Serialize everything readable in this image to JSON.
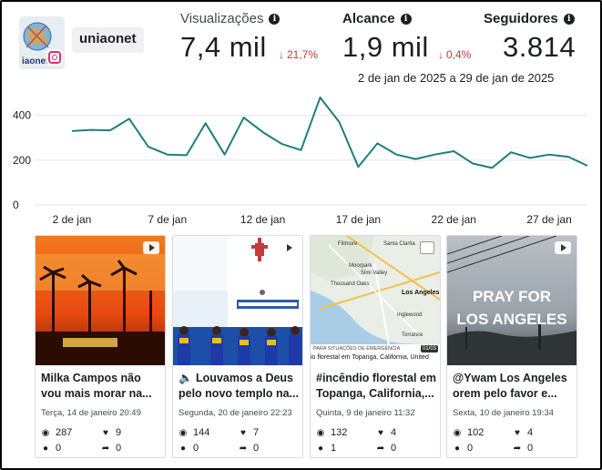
{
  "account": {
    "name": "uniaonet",
    "avatar_text": "iaonet"
  },
  "metrics": [
    {
      "label": "Visualizações",
      "value": "7,4 mil",
      "change": "21,7%",
      "direction": "down"
    },
    {
      "label": "Alcance",
      "value": "1,9 mil",
      "change": "0,4%",
      "direction": "down"
    },
    {
      "label": "Seguidores",
      "value": "3.814"
    }
  ],
  "date_range": "2 de jan de 2025 a 29 de jan de 2025",
  "chart_data": {
    "type": "line",
    "x": [
      "1 jan",
      "2 jan",
      "3 jan",
      "4 jan",
      "5 jan",
      "6 jan",
      "7 jan",
      "8 jan",
      "9 jan",
      "10 jan",
      "11 jan",
      "12 jan",
      "13 jan",
      "14 jan",
      "15 jan",
      "16 jan",
      "17 jan",
      "18 jan",
      "19 jan",
      "20 jan",
      "21 jan",
      "22 jan",
      "23 jan",
      "24 jan",
      "25 jan",
      "26 jan",
      "27 jan",
      "28 jan",
      "29 jan"
    ],
    "values": [
      null,
      330,
      335,
      333,
      385,
      260,
      225,
      222,
      365,
      225,
      390,
      325,
      272,
      245,
      480,
      370,
      170,
      275,
      225,
      205,
      225,
      240,
      185,
      165,
      235,
      210,
      225,
      215,
      175
    ],
    "x_tick_labels": [
      "2 de jan",
      "7 de jan",
      "12 de jan",
      "17 de jan",
      "22 de jan",
      "27 de jan"
    ],
    "y_tick_labels": [
      "400",
      "200",
      "0"
    ],
    "y_ticks": [
      400,
      200,
      0
    ],
    "ylim": [
      0,
      480
    ],
    "line_color": "#1f7f7a"
  },
  "posts": [
    {
      "title": "Milka Campos não vou mais morar na...",
      "date": "Terça, 14 de janeiro 20:49",
      "views": "287",
      "likes": "9",
      "comments": "0",
      "shares": "0",
      "media": "video"
    },
    {
      "title": "🔈 Louvamos a Deus pelo novo templo na...",
      "date": "Segunda, 20 de janeiro 22:23",
      "views": "144",
      "likes": "7",
      "comments": "0",
      "shares": "0",
      "media": "video"
    },
    {
      "title": "#incêndio florestal em Topanga, California,...",
      "date": "Quinta, 9 de janeiro 11:32",
      "views": "132",
      "likes": "4",
      "comments": "1",
      "shares": "0",
      "media": "image",
      "thumb_caption_top": "PARA SITUAÇÕES DE EMERGÊNCIA",
      "thumb_caption": "io florestal em Topanga, California, United",
      "thumb_counter": "01/03"
    },
    {
      "title": "@Ywam Los Angeles orem pelo favor e...",
      "date": "Sexta, 10 de janeiro 19:34",
      "views": "102",
      "likes": "4",
      "comments": "0",
      "shares": "0",
      "media": "video",
      "thumb_text_1": "PRAY FOR",
      "thumb_text_2": "LOS ANGELES"
    }
  ],
  "icons": {
    "info": "info-icon",
    "down": "arrow-down-icon",
    "views": "eye-icon",
    "likes": "heart-icon",
    "comments": "comment-icon",
    "shares": "share-icon",
    "video": "video-icon",
    "instagram": "instagram-icon"
  }
}
